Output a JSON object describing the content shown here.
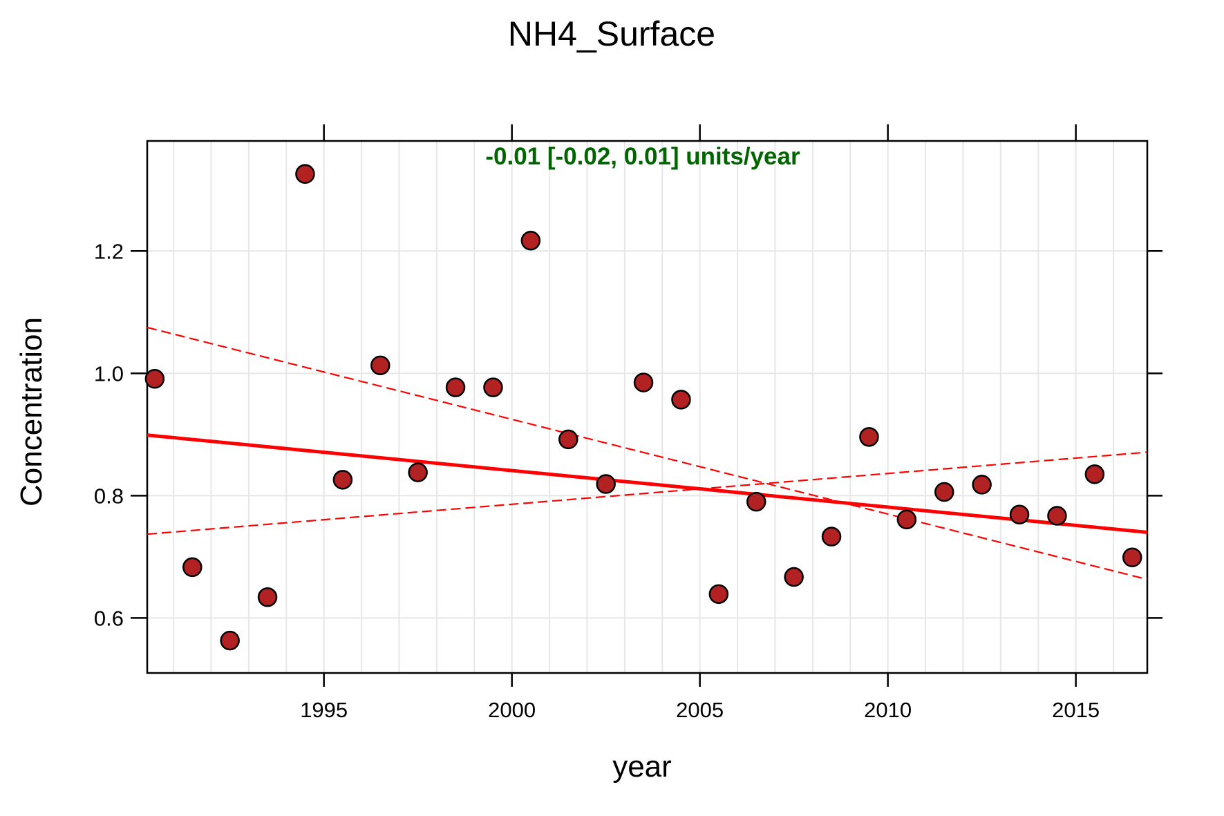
{
  "chart_data": {
    "type": "scatter",
    "title": "NH4_Surface",
    "xlabel": "year",
    "ylabel": "Concentration",
    "xlim": [
      1990.3,
      2016.9
    ],
    "ylim": [
      0.51,
      1.38
    ],
    "x_ticks": [
      1995,
      2000,
      2005,
      2010,
      2015
    ],
    "x_tick_labels": [
      "1995",
      "2000",
      "2005",
      "2010",
      "2015"
    ],
    "y_ticks": [
      0.6,
      0.8,
      1.0,
      1.2
    ],
    "y_tick_labels": [
      "0.6",
      "0.8",
      "1.0",
      "1.2"
    ],
    "grid": true,
    "annotation": "-0.01 [-0.02, 0.01] units/year",
    "annotation_color": "#006400",
    "point_color": "#b22222",
    "line_color": "#ff0000",
    "points": [
      {
        "x": 1990.5,
        "y": 0.991
      },
      {
        "x": 1991.5,
        "y": 0.683
      },
      {
        "x": 1992.5,
        "y": 0.563
      },
      {
        "x": 1993.5,
        "y": 0.634
      },
      {
        "x": 1994.5,
        "y": 1.326
      },
      {
        "x": 1995.5,
        "y": 0.826
      },
      {
        "x": 1996.5,
        "y": 1.013
      },
      {
        "x": 1997.5,
        "y": 0.838
      },
      {
        "x": 1998.5,
        "y": 0.977
      },
      {
        "x": 1999.5,
        "y": 0.977
      },
      {
        "x": 2000.5,
        "y": 1.217
      },
      {
        "x": 2001.5,
        "y": 0.892
      },
      {
        "x": 2002.5,
        "y": 0.819
      },
      {
        "x": 2003.5,
        "y": 0.985
      },
      {
        "x": 2004.5,
        "y": 0.957
      },
      {
        "x": 2005.5,
        "y": 0.639
      },
      {
        "x": 2006.5,
        "y": 0.79
      },
      {
        "x": 2007.5,
        "y": 0.667
      },
      {
        "x": 2008.5,
        "y": 0.733
      },
      {
        "x": 2009.5,
        "y": 0.896
      },
      {
        "x": 2010.5,
        "y": 0.761
      },
      {
        "x": 2011.5,
        "y": 0.806
      },
      {
        "x": 2012.5,
        "y": 0.818
      },
      {
        "x": 2013.5,
        "y": 0.769
      },
      {
        "x": 2014.5,
        "y": 0.767
      },
      {
        "x": 2015.5,
        "y": 0.835
      },
      {
        "x": 2016.5,
        "y": 0.699
      }
    ],
    "trend_line": [
      {
        "x": 1990.3,
        "y": 0.899
      },
      {
        "x": 2016.9,
        "y": 0.74
      }
    ],
    "ci_lower_line": [
      {
        "x": 1990.3,
        "y": 1.075
      },
      {
        "x": 2016.9,
        "y": 0.663
      }
    ],
    "ci_upper_line": [
      {
        "x": 1990.3,
        "y": 0.737
      },
      {
        "x": 2016.9,
        "y": 0.871
      }
    ]
  }
}
